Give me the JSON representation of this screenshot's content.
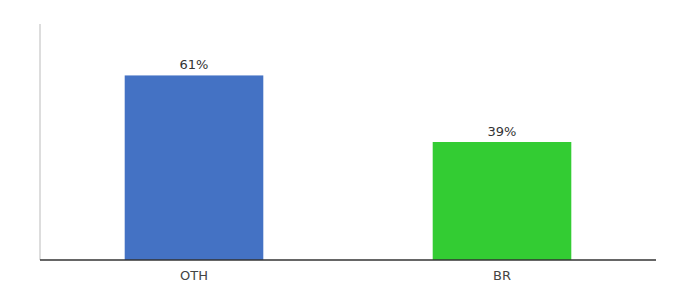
{
  "chart_data": {
    "type": "bar",
    "categories": [
      "OTH",
      "BR"
    ],
    "values": [
      61,
      39
    ],
    "value_labels": [
      "61%",
      "39%"
    ],
    "data_labels": true,
    "colors": [
      "#4472C4",
      "#33CC33"
    ],
    "ylim": [
      0,
      78
    ],
    "tick_labels": "x"
  }
}
